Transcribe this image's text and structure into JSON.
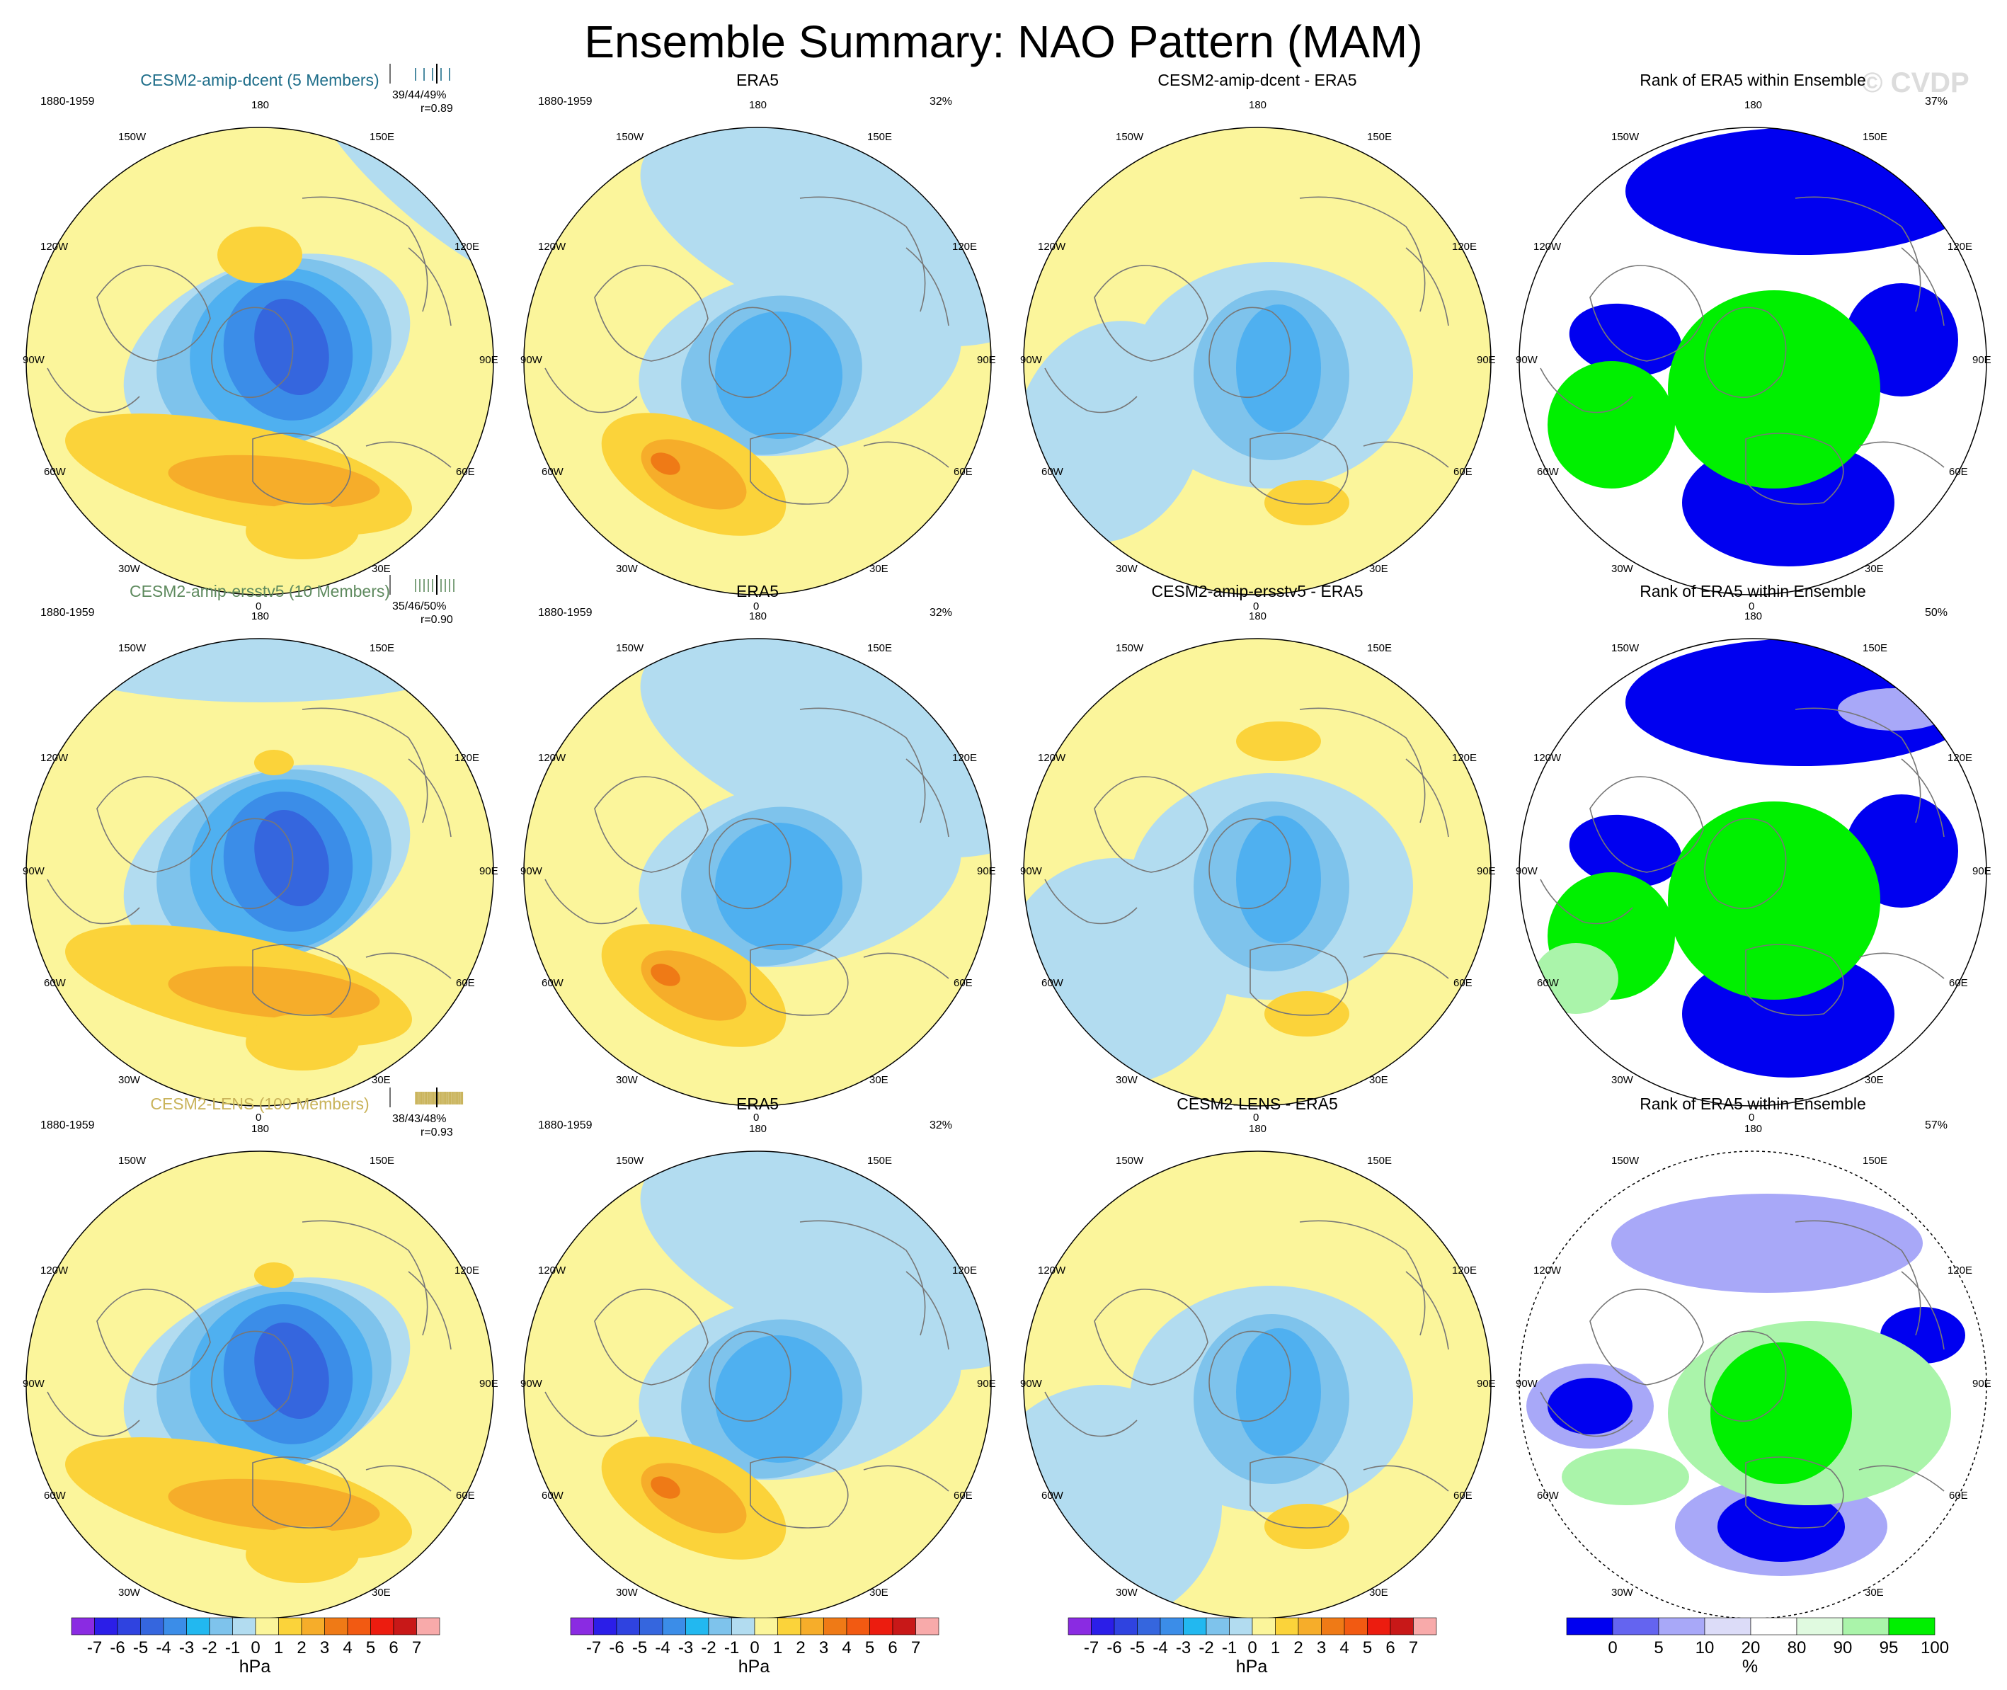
{
  "title": "Ensemble Summary: NAO Pattern (MAM)",
  "watermark": "© CVDP",
  "colors": {
    "land_neutral": "#fbf59b",
    "neg1": "#b2dcf0",
    "neg2": "#7ec3ec",
    "neg3": "#4fb0f0",
    "neg4": "#3b8de8",
    "neg5": "#3566de",
    "pos1": "#fbd33a",
    "pos2": "#f6ad2a",
    "pos3": "#ef7a16",
    "rank_blue": "#0000f0",
    "rank_green": "#00f000",
    "rank_lightblue": "#a8a8f8",
    "rank_lightgreen": "#aaf4aa"
  },
  "lon_labels": {
    "top": "180",
    "bottom": "0",
    "ul": "150W",
    "ur": "150E",
    "ml_up": "120W",
    "mr_up": "120E",
    "left": "90W",
    "right": "90E",
    "ml_lo": "60W",
    "mr_lo": "60E",
    "ll": "30W",
    "lr": "30E"
  },
  "rows": [
    {
      "model": {
        "title": "CESM2-amip-dcent (5 Members)",
        "title_color": "#1f6e8a",
        "years": "1880-1959",
        "stats_pct": "39/44/49%",
        "stats_r": "r=0.89"
      },
      "obs": {
        "title": "ERA5",
        "years": "1880-1959",
        "pct": "32%"
      },
      "diff": {
        "title": "CESM2-amip-dcent - ERA5"
      },
      "rank": {
        "title": "Rank of ERA5 within Ensemble",
        "pct": "37%"
      }
    },
    {
      "model": {
        "title": "CESM2-amip-ersstv5 (10 Members)",
        "title_color": "#5e8a5e",
        "years": "1880-1959",
        "stats_pct": "35/46/50%",
        "stats_r": "r=0.90"
      },
      "obs": {
        "title": "ERA5",
        "years": "1880-1959",
        "pct": "32%"
      },
      "diff": {
        "title": "CESM2-amip-ersstv5 - ERA5"
      },
      "rank": {
        "title": "Rank of ERA5 within Ensemble",
        "pct": "50%"
      }
    },
    {
      "model": {
        "title": "CESM2-LENS (100 Members)",
        "title_color": "#c9b35a",
        "years": "1880-1959",
        "stats_pct": "38/43/48%",
        "stats_r": "r=0.93"
      },
      "obs": {
        "title": "ERA5",
        "years": "1880-1959",
        "pct": "32%"
      },
      "diff": {
        "title": "CESM2-LENS - ERA5"
      },
      "rank": {
        "title": "Rank of ERA5 within Ensemble",
        "pct": "57%"
      }
    }
  ],
  "colorbar_hpa": {
    "unit": "hPa",
    "labels": [
      "-7",
      "-6",
      "-5",
      "-4",
      "-3",
      "-2",
      "-1",
      "0",
      "1",
      "2",
      "3",
      "4",
      "5",
      "6",
      "7"
    ],
    "colors": [
      "#8a2be2",
      "#2b1ee8",
      "#2f43e0",
      "#3566de",
      "#3b8de8",
      "#22b8f0",
      "#7ec3ec",
      "#b2dcf0",
      "#fbf59b",
      "#fbd33a",
      "#f6ad2a",
      "#ef7a16",
      "#f25a12",
      "#ec1c0f",
      "#c81818",
      "#f8aaaa"
    ]
  },
  "colorbar_rank": {
    "unit": "%",
    "labels": [
      "0",
      "5",
      "10",
      "20",
      "80",
      "90",
      "95",
      "100"
    ],
    "colors": [
      "#0000f0",
      "#6464f0",
      "#a8a8f8",
      "#dcdcf8",
      "#ffffff",
      "#e0fae0",
      "#aaf4aa",
      "#00f000"
    ]
  }
}
